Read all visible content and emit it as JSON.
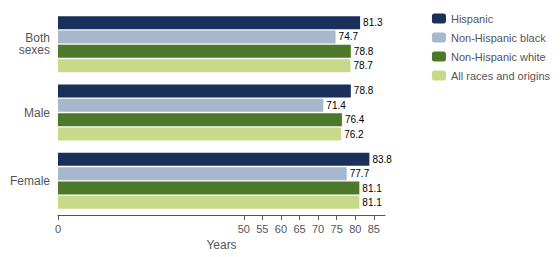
{
  "chart_data": {
    "type": "bar",
    "orientation": "horizontal",
    "categories": [
      "Both\nsexes",
      "Male",
      "Female"
    ],
    "series": [
      {
        "name": "Hispanic",
        "color": "#1a2f5a",
        "values": [
          81.3,
          78.8,
          83.8
        ]
      },
      {
        "name": "Non-Hispanic black",
        "color": "#a8b8cc",
        "values": [
          74.7,
          71.4,
          77.7
        ]
      },
      {
        "name": "Non-Hispanic white",
        "color": "#4d7a2a",
        "values": [
          78.8,
          76.4,
          81.1
        ]
      },
      {
        "name": "All races and origins",
        "color": "#c8d98a",
        "values": [
          78.7,
          76.2,
          81.1
        ]
      }
    ],
    "xlabel": "Years",
    "xlim": [
      0,
      88
    ],
    "xticks": [
      0,
      50,
      55,
      60,
      65,
      70,
      75,
      80,
      85
    ],
    "data_labels": true,
    "legend": "upper right",
    "grid": false
  }
}
